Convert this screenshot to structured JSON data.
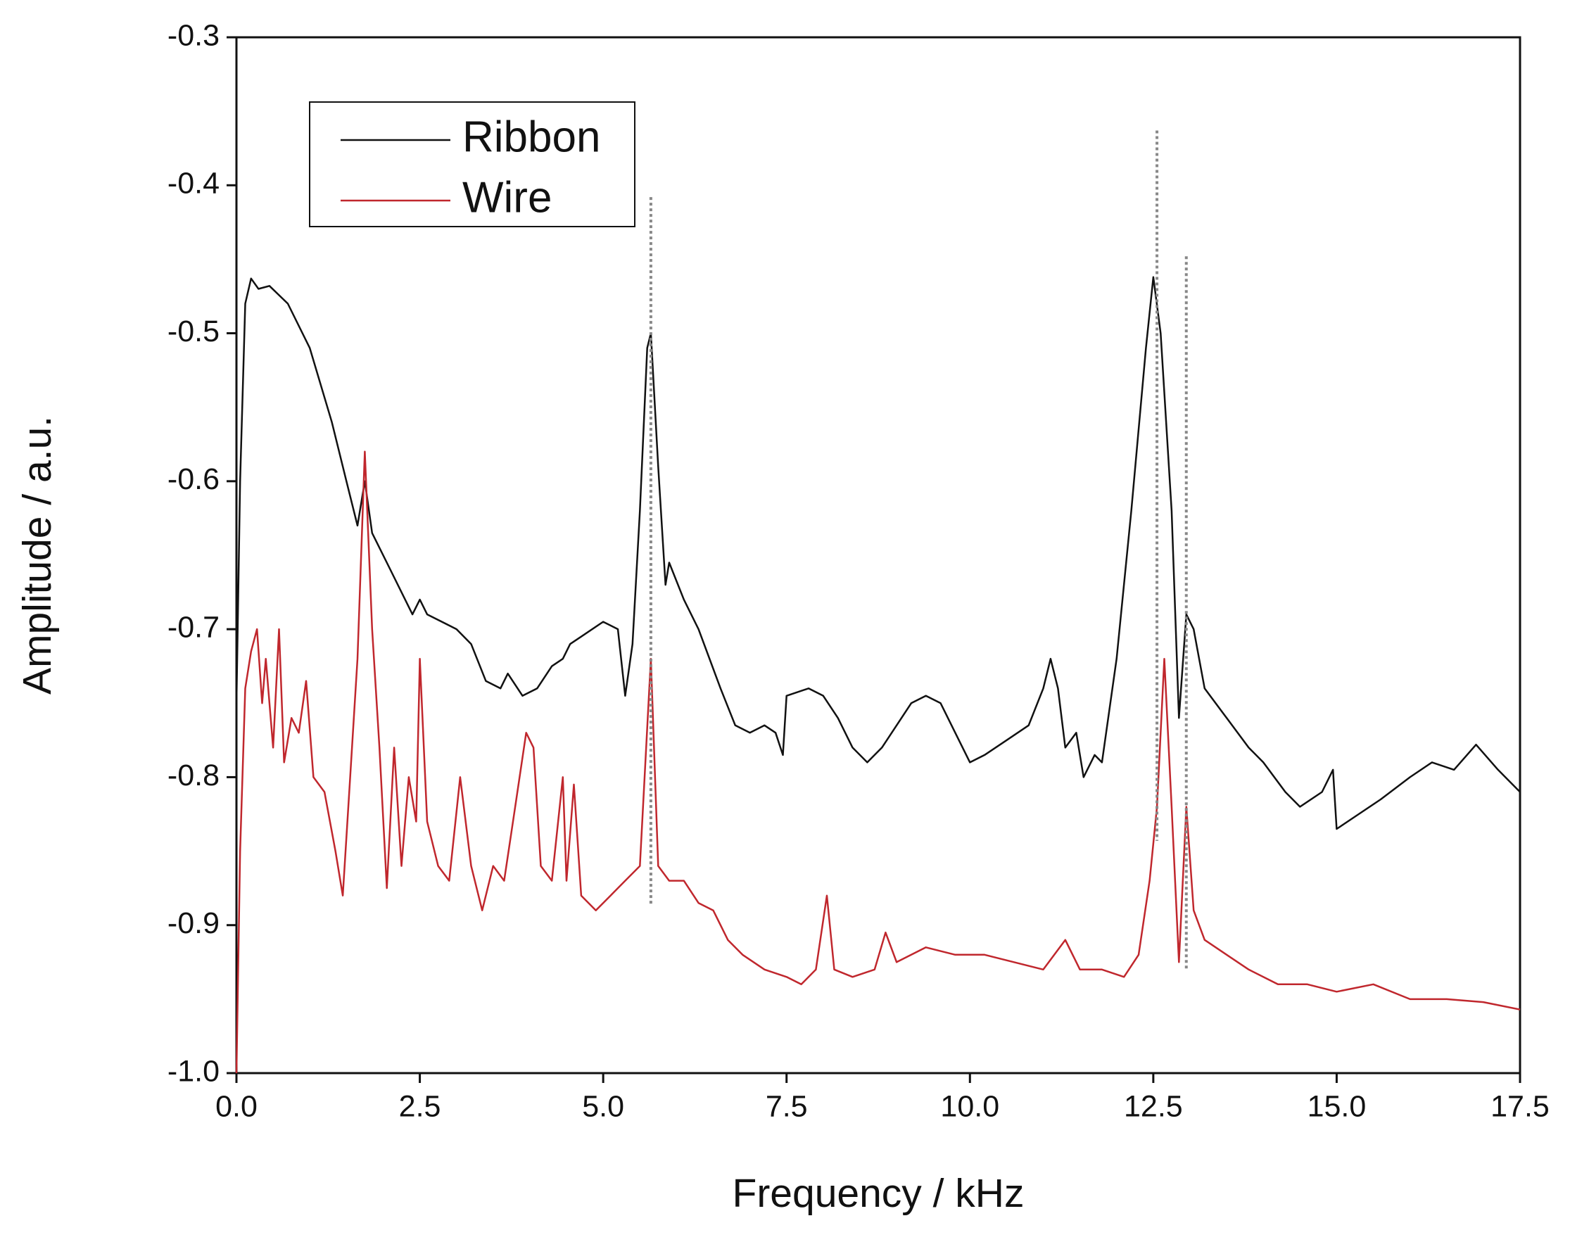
{
  "chart_data": {
    "type": "line",
    "xlabel": "Frequency / kHz",
    "ylabel": "Amplitude / a.u.",
    "xlim": [
      0,
      17.5
    ],
    "ylim": [
      -1,
      -0.3
    ],
    "xticks": [
      {
        "value": 0,
        "label": "0.0"
      },
      2.5,
      {
        "value": 5,
        "label": "5.0"
      },
      7.5,
      {
        "value": 10,
        "label": "10.0"
      },
      12.5,
      {
        "value": 15,
        "label": "15.0"
      },
      17.5
    ],
    "yticks": [
      {
        "value": -1,
        "label": "-1.0"
      },
      -0.9,
      -0.8,
      -0.7,
      -0.6,
      -0.5,
      -0.4,
      -0.3
    ],
    "legend": "upper left",
    "grid": false,
    "series": [
      {
        "name": "Ribbon",
        "color": "#111111",
        "x": [
          0.0,
          0.05,
          0.12,
          0.2,
          0.3,
          0.45,
          0.7,
          1.0,
          1.3,
          1.5,
          1.65,
          1.75,
          1.85,
          2.1,
          2.4,
          2.5,
          2.6,
          3.0,
          3.2,
          3.4,
          3.6,
          3.7,
          3.9,
          4.1,
          4.3,
          4.45,
          4.55,
          4.7,
          5.0,
          5.2,
          5.3,
          5.4,
          5.5,
          5.6,
          5.65,
          5.75,
          5.85,
          5.9,
          6.1,
          6.3,
          6.6,
          6.8,
          7.0,
          7.2,
          7.35,
          7.45,
          7.5,
          7.8,
          8.0,
          8.2,
          8.4,
          8.6,
          8.8,
          9.0,
          9.2,
          9.4,
          9.6,
          9.8,
          10.0,
          10.2,
          10.5,
          10.8,
          11.0,
          11.1,
          11.2,
          11.3,
          11.45,
          11.55,
          11.7,
          11.8,
          12.0,
          12.2,
          12.4,
          12.5,
          12.6,
          12.75,
          12.85,
          12.95,
          13.05,
          13.2,
          13.5,
          13.8,
          14.0,
          14.3,
          14.5,
          14.8,
          14.95,
          15.0,
          15.3,
          15.6,
          16.0,
          16.3,
          16.6,
          16.9,
          17.2,
          17.5
        ],
        "values": [
          -0.75,
          -0.6,
          -0.48,
          -0.463,
          -0.47,
          -0.468,
          -0.48,
          -0.51,
          -0.56,
          -0.6,
          -0.63,
          -0.6,
          -0.635,
          -0.66,
          -0.69,
          -0.68,
          -0.69,
          -0.7,
          -0.71,
          -0.735,
          -0.74,
          -0.73,
          -0.745,
          -0.74,
          -0.725,
          -0.72,
          -0.71,
          -0.705,
          -0.695,
          -0.7,
          -0.745,
          -0.71,
          -0.62,
          -0.51,
          -0.5,
          -0.59,
          -0.67,
          -0.655,
          -0.68,
          -0.7,
          -0.74,
          -0.765,
          -0.77,
          -0.765,
          -0.77,
          -0.785,
          -0.745,
          -0.74,
          -0.745,
          -0.76,
          -0.78,
          -0.79,
          -0.78,
          -0.765,
          -0.75,
          -0.745,
          -0.75,
          -0.77,
          -0.79,
          -0.785,
          -0.775,
          -0.765,
          -0.74,
          -0.72,
          -0.74,
          -0.78,
          -0.77,
          -0.8,
          -0.785,
          -0.79,
          -0.72,
          -0.62,
          -0.51,
          -0.462,
          -0.5,
          -0.62,
          -0.76,
          -0.69,
          -0.7,
          -0.74,
          -0.76,
          -0.78,
          -0.79,
          -0.81,
          -0.82,
          -0.81,
          -0.795,
          -0.835,
          -0.825,
          -0.815,
          -0.8,
          -0.79,
          -0.795,
          -0.778,
          -0.795,
          -0.81
        ]
      },
      {
        "name": "Wire",
        "color": "#c0272d",
        "x": [
          0.0,
          0.05,
          0.12,
          0.2,
          0.28,
          0.35,
          0.4,
          0.5,
          0.58,
          0.65,
          0.75,
          0.85,
          0.95,
          1.05,
          1.2,
          1.35,
          1.45,
          1.55,
          1.65,
          1.75,
          1.85,
          1.95,
          2.05,
          2.15,
          2.25,
          2.35,
          2.45,
          2.5,
          2.6,
          2.75,
          2.9,
          3.05,
          3.2,
          3.35,
          3.5,
          3.65,
          3.8,
          3.95,
          4.05,
          4.15,
          4.3,
          4.45,
          4.5,
          4.6,
          4.7,
          4.9,
          5.1,
          5.3,
          5.5,
          5.65,
          5.75,
          5.9,
          6.1,
          6.3,
          6.5,
          6.7,
          6.9,
          7.2,
          7.5,
          7.7,
          7.9,
          8.05,
          8.15,
          8.4,
          8.7,
          8.85,
          9.0,
          9.4,
          9.8,
          10.2,
          10.6,
          11.0,
          11.3,
          11.5,
          11.8,
          12.1,
          12.3,
          12.45,
          12.55,
          12.65,
          12.75,
          12.85,
          12.95,
          13.05,
          13.2,
          13.5,
          13.8,
          14.2,
          14.6,
          15.0,
          15.5,
          16.0,
          16.5,
          17.0,
          17.5
        ],
        "values": [
          -1.0,
          -0.85,
          -0.74,
          -0.715,
          -0.7,
          -0.75,
          -0.72,
          -0.78,
          -0.7,
          -0.79,
          -0.76,
          -0.77,
          -0.735,
          -0.8,
          -0.81,
          -0.85,
          -0.88,
          -0.8,
          -0.72,
          -0.58,
          -0.7,
          -0.78,
          -0.875,
          -0.78,
          -0.86,
          -0.8,
          -0.83,
          -0.72,
          -0.83,
          -0.86,
          -0.87,
          -0.8,
          -0.86,
          -0.89,
          -0.86,
          -0.87,
          -0.82,
          -0.77,
          -0.78,
          -0.86,
          -0.87,
          -0.8,
          -0.87,
          -0.805,
          -0.88,
          -0.89,
          -0.88,
          -0.87,
          -0.86,
          -0.72,
          -0.86,
          -0.87,
          -0.87,
          -0.885,
          -0.89,
          -0.91,
          -0.92,
          -0.93,
          -0.935,
          -0.94,
          -0.93,
          -0.88,
          -0.93,
          -0.935,
          -0.93,
          -0.905,
          -0.925,
          -0.915,
          -0.92,
          -0.92,
          -0.925,
          -0.93,
          -0.91,
          -0.93,
          -0.93,
          -0.935,
          -0.92,
          -0.87,
          -0.82,
          -0.72,
          -0.82,
          -0.925,
          -0.82,
          -0.89,
          -0.91,
          -0.92,
          -0.93,
          -0.94,
          -0.94,
          -0.945,
          -0.94,
          -0.95,
          -0.95,
          -0.952,
          -0.957
        ]
      }
    ],
    "vlines": [
      {
        "x": 5.65,
        "from": -0.408,
        "to": -0.887
      },
      {
        "x": 12.55,
        "from": -0.363,
        "to": -0.843
      },
      {
        "x": 12.95,
        "from": -0.448,
        "to": -0.93
      }
    ]
  }
}
